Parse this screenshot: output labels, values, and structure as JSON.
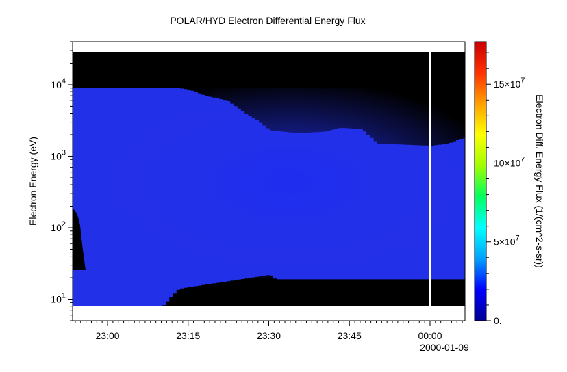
{
  "chart_data": {
    "type": "heatmap",
    "title": "POLAR/HYD  Electron Differential Energy Flux",
    "xlabel": "",
    "ylabel": "Electron Energy (eV)",
    "x_tick_labels": [
      "23:00",
      "23:15",
      "23:30",
      "23:45",
      "00:00"
    ],
    "x_date_label": "2000-01-09",
    "x_range": [
      "2000-01-08T22:53:30",
      "2000-01-09T00:06:30"
    ],
    "y_scale": "log",
    "ylim": [
      5,
      40000
    ],
    "y_tick_labels": [
      {
        "base": "10",
        "exp": "1"
      },
      {
        "base": "10",
        "exp": "2"
      },
      {
        "base": "10",
        "exp": "3"
      },
      {
        "base": "10",
        "exp": "4"
      }
    ],
    "colorbar": {
      "label": "Electron Diff. Energy Flux (1/(cm^2-s-sr))",
      "range": [
        0,
        177000000
      ],
      "colors": [
        "#000090",
        "#0000ff",
        "#00a0ff",
        "#00ffff",
        "#00ff60",
        "#a0ff00",
        "#ffff00",
        "#ffa000",
        "#ff3000",
        "#c80000"
      ],
      "tick_labels": [
        {
          "text": "0.",
          "base": "",
          "exp": ""
        },
        {
          "text": "",
          "base": "5×10",
          "exp": "7"
        },
        {
          "text": "",
          "base": "10×10",
          "exp": "7"
        },
        {
          "text": "",
          "base": "15×10",
          "exp": "7"
        }
      ]
    },
    "data_coverage_energy_range_eV": [
      8,
      28000
    ],
    "upper_energy_cutoff_eV": [
      [
        "23:00",
        9000
      ],
      [
        "23:13",
        9000
      ],
      [
        "23:15",
        8500
      ],
      [
        "23:18",
        7000
      ],
      [
        "23:22",
        6000
      ],
      [
        "23:25",
        4200
      ],
      [
        "23:28",
        3000
      ],
      [
        "23:30",
        2300
      ],
      [
        "23:35",
        2100
      ],
      [
        "23:40",
        2200
      ],
      [
        "23:43",
        2500
      ],
      [
        "23:47",
        2400
      ],
      [
        "23:50",
        1500
      ],
      [
        "23:55",
        1450
      ],
      [
        "00:00",
        1400
      ],
      [
        "00:03",
        1500
      ],
      [
        "00:06",
        1800
      ]
    ],
    "lower_energy_cutoff_eV": [
      [
        "23:00",
        8
      ],
      [
        "23:10",
        8
      ],
      [
        "23:13",
        14
      ],
      [
        "23:30",
        22
      ],
      [
        "23:31",
        19
      ],
      [
        "23:50",
        19
      ],
      [
        "00:06",
        19
      ]
    ],
    "gap_at": "00:00",
    "flux_level_in_band": "low (about 1×10^7 to 2.5×10^7)"
  }
}
